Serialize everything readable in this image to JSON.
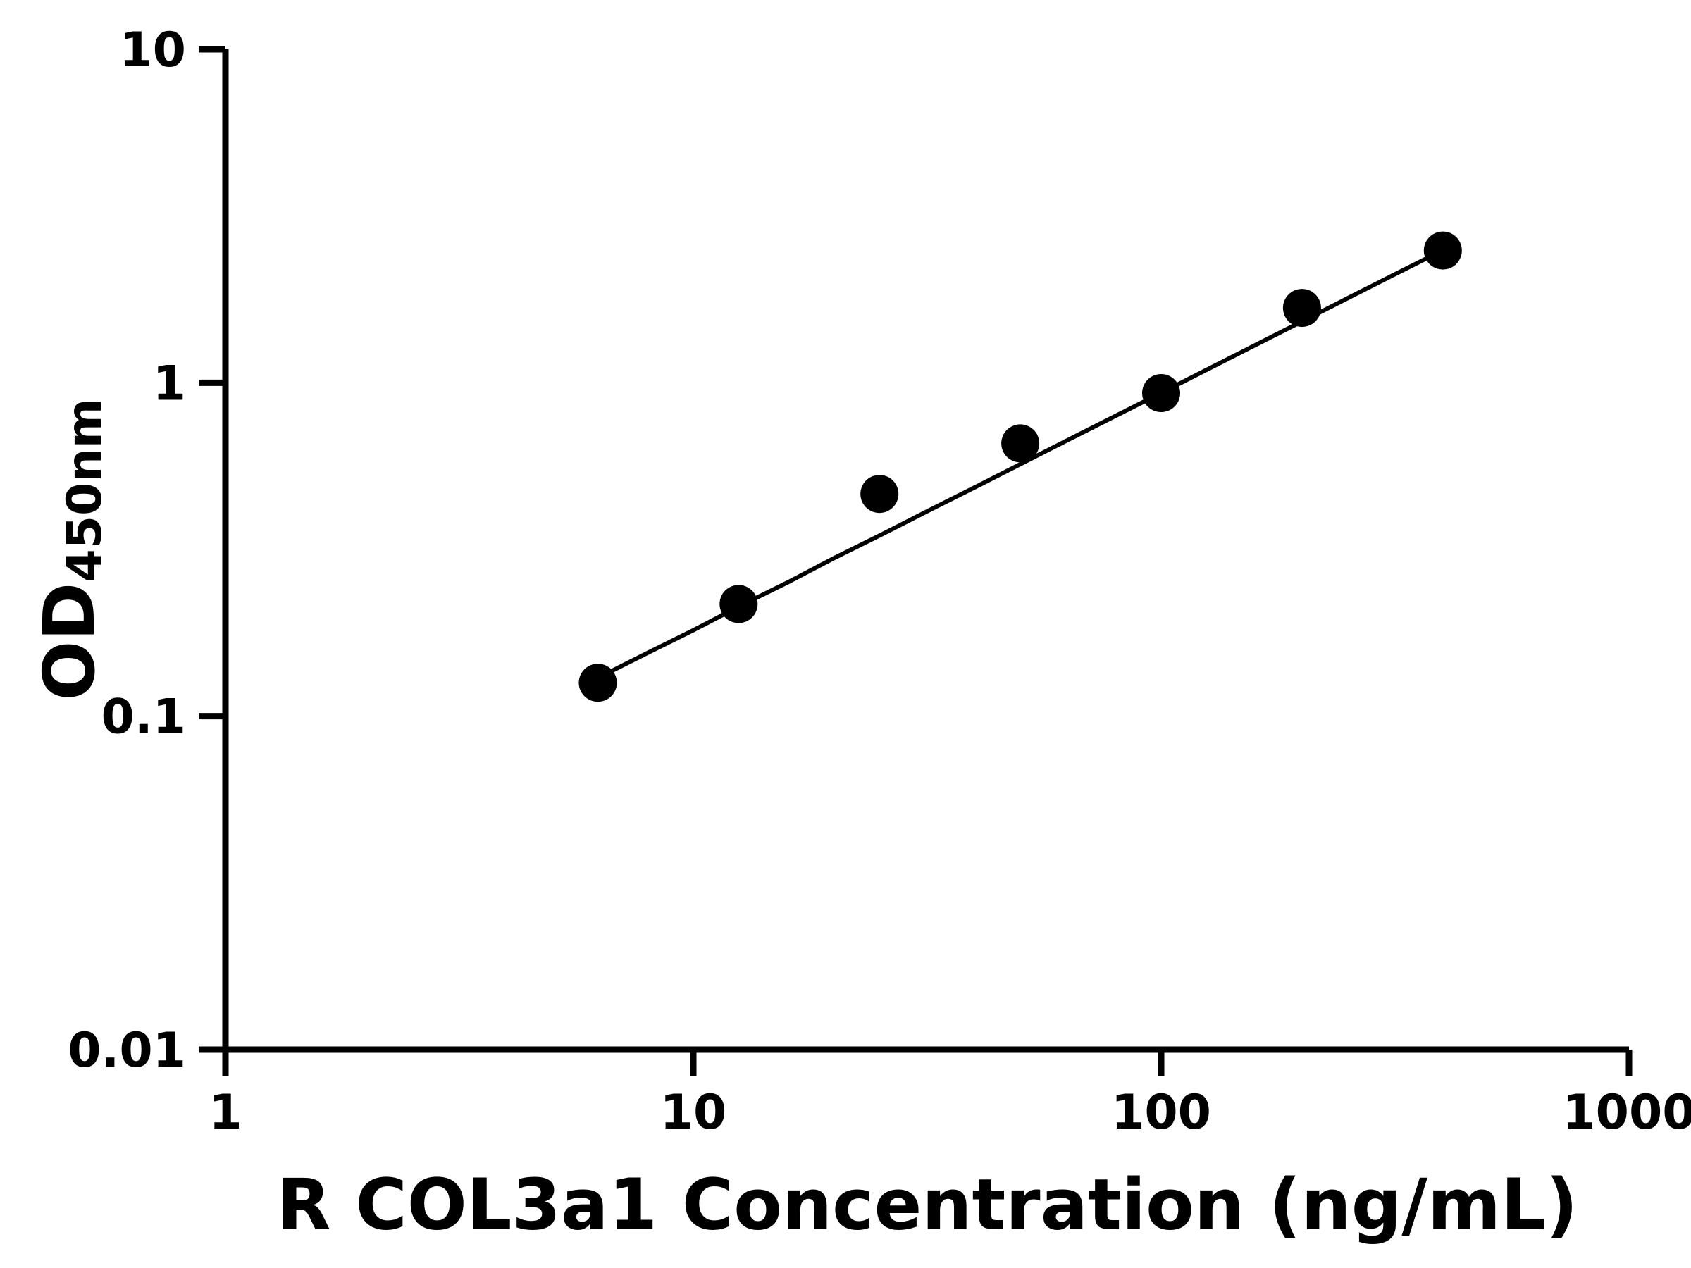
{
  "page": {
    "background": "#ffffff"
  },
  "chart_data": {
    "type": "scatter",
    "title": "",
    "xlabel": "R COL3a1 Concentration (ng/mL)",
    "ylabel_main": "OD",
    "ylabel_sub": "450nm",
    "x_scale": "log",
    "y_scale": "log",
    "xlim": [
      1,
      1000
    ],
    "ylim": [
      0.01,
      10
    ],
    "grid": false,
    "legend": false,
    "x_ticks": [
      {
        "value": 1,
        "label": "1"
      },
      {
        "value": 10,
        "label": "10"
      },
      {
        "value": 100,
        "label": "100"
      },
      {
        "value": 1000,
        "label": "1000"
      }
    ],
    "y_ticks": [
      {
        "value": 0.01,
        "label": "0.01"
      },
      {
        "value": 0.1,
        "label": "0.1"
      },
      {
        "value": 1,
        "label": "1"
      },
      {
        "value": 10,
        "label": "10"
      }
    ],
    "series": [
      {
        "name": "standard-curve-points",
        "marker": "circle",
        "marker_radius": 27,
        "color": "#000000",
        "points": [
          {
            "x": 6.25,
            "y": 0.126
          },
          {
            "x": 12.5,
            "y": 0.217
          },
          {
            "x": 25,
            "y": 0.464
          },
          {
            "x": 50,
            "y": 0.658
          },
          {
            "x": 100,
            "y": 0.931
          },
          {
            "x": 200,
            "y": 1.677
          },
          {
            "x": 400,
            "y": 2.492
          }
        ]
      }
    ],
    "fit_line": {
      "color": "#000000",
      "width": 6,
      "points": [
        [
          6.3,
          0.131
        ],
        [
          8,
          0.155
        ],
        [
          10,
          0.181
        ],
        [
          12.5,
          0.213
        ],
        [
          16,
          0.253
        ],
        [
          20,
          0.298
        ],
        [
          25,
          0.348
        ],
        [
          32,
          0.415
        ],
        [
          40,
          0.486
        ],
        [
          50,
          0.57
        ],
        [
          63,
          0.672
        ],
        [
          80,
          0.796
        ],
        [
          100,
          0.932
        ],
        [
          125,
          1.093
        ],
        [
          160,
          1.303
        ],
        [
          200,
          1.527
        ],
        [
          250,
          1.79
        ],
        [
          320,
          2.134
        ],
        [
          400,
          2.499
        ]
      ]
    },
    "axis_color": "#000000",
    "axis_stroke_width": 9,
    "tick_length": 38
  }
}
